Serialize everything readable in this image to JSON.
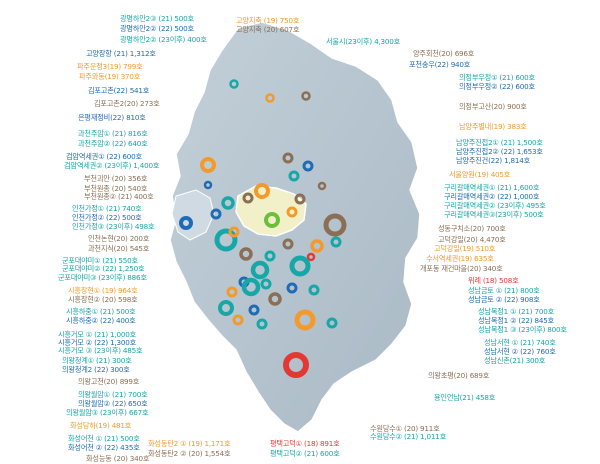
{
  "colors": {
    "teal": "#16a7a7",
    "blue": "#1f6bb5",
    "orange": "#f39a2b",
    "brown": "#8a6f55",
    "green": "#6cbf3b",
    "red": "#e23a32",
    "seoul": "#f2f0c8",
    "land": "#b5c4cf"
  },
  "labels": [
    {
      "text": "광명하안2③ (21) 500호",
      "color": "teal",
      "icon": "blue"
    },
    {
      "text": "광명하안2② (22) 500호",
      "color": "blue",
      "icon": "teal"
    },
    {
      "text": "광명하안2② (23이후) 400호",
      "color": "teal",
      "icon": "teal"
    },
    {
      "text": "고양장항 (21) 1,312호",
      "color": "blue",
      "icon": "blue"
    },
    {
      "text": "파주운정3(19) 799호",
      "color": "orange",
      "icon": "orange"
    },
    {
      "text": "파주와동(19) 370호",
      "color": "orange",
      "icon": "orange"
    },
    {
      "text": "김포고촌(22) 541호",
      "color": "blue",
      "icon": "blue"
    },
    {
      "text": "김포고촌2(20) 273호",
      "color": "brown",
      "icon": "brown"
    },
    {
      "text": "은평재정비(22) 810호",
      "color": "blue",
      "icon": "blue"
    },
    {
      "text": "과천주암① (21) 816호",
      "color": "teal",
      "icon": "teal"
    },
    {
      "text": "과천주암② (22) 640호",
      "color": "teal",
      "icon": "teal"
    },
    {
      "text": "검암역세권① (22) 600호",
      "color": "blue",
      "icon": "blue"
    },
    {
      "text": "검암역세권② (23이후) 1,400호",
      "color": "teal",
      "icon": "teal"
    },
    {
      "text": "부천괴안 (20) 356호",
      "color": "brown",
      "icon": "brown"
    },
    {
      "text": "부천원종 (20) 540호",
      "color": "brown",
      "icon": "brown"
    },
    {
      "text": "부천원종② (21) 400호",
      "color": "brown",
      "icon": "brown"
    },
    {
      "text": "인천가정① (21) 740호",
      "color": "teal",
      "icon": "teal"
    },
    {
      "text": "인천가정② (22) 500호",
      "color": "blue",
      "icon": "blue"
    },
    {
      "text": "인천가정③ (23이후) 498호",
      "color": "teal",
      "icon": "teal"
    },
    {
      "text": "인천논현(20) 200호",
      "color": "brown",
      "icon": "brown"
    },
    {
      "text": "과천지식(20) 545호",
      "color": "brown",
      "icon": "brown"
    },
    {
      "text": "군포대야미① (21) 550호",
      "color": "teal",
      "icon": "teal"
    },
    {
      "text": "군포대야미② (22) 1,250호",
      "color": "teal",
      "icon": "teal"
    },
    {
      "text": "군포대야미③ (23이후) 886호",
      "color": "teal",
      "icon": "teal"
    },
    {
      "text": "시흥장현① (19) 964호",
      "color": "orange",
      "icon": "orange"
    },
    {
      "text": "시흥장현② (20) 598호",
      "color": "brown",
      "icon": "brown"
    },
    {
      "text": "시흥하중① (21) 500호",
      "color": "teal",
      "icon": "teal"
    },
    {
      "text": "시흥하중② (22) 400호",
      "color": "blue",
      "icon": "blue"
    },
    {
      "text": "시흥거모 ① (21) 1,000호",
      "color": "teal",
      "icon": "teal"
    },
    {
      "text": "시흥거모 ② (22) 1,300호",
      "color": "blue",
      "icon": "blue"
    },
    {
      "text": "시흥거모 ③ (23이후) 485호",
      "color": "teal",
      "icon": "teal"
    },
    {
      "text": "의왕청계① (21) 300호",
      "color": "teal",
      "icon": "teal"
    },
    {
      "text": "의왕청계2 (22) 300호",
      "color": "blue",
      "icon": "blue"
    },
    {
      "text": "의왕고천(20) 899호",
      "color": "brown",
      "icon": "brown"
    },
    {
      "text": "의왕월암① (21) 700호",
      "color": "teal",
      "icon": "teal"
    },
    {
      "text": "의왕월암② (22) 650호",
      "color": "blue",
      "icon": "blue"
    },
    {
      "text": "의왕월암③ (23이후) 667호",
      "color": "teal",
      "icon": "teal"
    },
    {
      "text": "화성당하(19) 481호",
      "color": "orange",
      "icon": "orange"
    },
    {
      "text": "화성어천 ① (21) 500호",
      "color": "teal",
      "icon": "teal"
    },
    {
      "text": "화성어천 ② (22) 435호",
      "color": "blue",
      "icon": "blue"
    },
    {
      "text": "화성능동 (20) 340호",
      "color": "brown",
      "icon": "brown"
    },
    {
      "text": "화성동탄2 ① (19) 1,171호",
      "color": "orange",
      "icon": "orange"
    },
    {
      "text": "화성동탄2 ② (20) 1,554호",
      "color": "brown",
      "icon": "brown"
    },
    {
      "text": "평택고덕① (18) 891호",
      "color": "red",
      "icon": "red"
    },
    {
      "text": "평택고덕② (21) 600호",
      "color": "teal",
      "icon": "teal"
    },
    {
      "text": "수원당수① (20) 911호",
      "color": "brown",
      "icon": "brown"
    },
    {
      "text": "수원당수② (21) 1,011호",
      "color": "teal",
      "icon": "teal"
    },
    {
      "text": "용인언남(21) 458호",
      "color": "teal",
      "icon": "teal"
    },
    {
      "text": "의왕초평(20) 689호",
      "color": "brown",
      "icon": "brown"
    },
    {
      "text": "성남신촌(21) 300호",
      "color": "teal",
      "icon": "teal"
    },
    {
      "text": "성남서현 ② (22) 760호",
      "color": "blue",
      "icon": "blue"
    },
    {
      "text": "성남서현 ① (21) 740호",
      "color": "teal",
      "icon": "teal"
    },
    {
      "text": "성남복정1 ③ (23이후) 800호",
      "color": "teal",
      "icon": "teal"
    },
    {
      "text": "성남복정1 ② (22) 845호",
      "color": "blue",
      "icon": "blue"
    },
    {
      "text": "성남복정1 ① (21) 700호",
      "color": "teal",
      "icon": "teal"
    },
    {
      "text": "성남금토 ② (22) 908호",
      "color": "blue",
      "icon": "blue"
    },
    {
      "text": "성남금토 ① (21) 800호",
      "color": "teal",
      "icon": "teal"
    },
    {
      "text": "위례 (18) 508호",
      "color": "red",
      "icon": "red"
    },
    {
      "text": "개포동 재건마을(20) 340호",
      "color": "brown",
      "icon": "brown"
    },
    {
      "text": "수서역세권(19) 635호",
      "color": "orange",
      "icon": "orange"
    },
    {
      "text": "고덕강일(19) 510호",
      "color": "orange",
      "icon": "orange"
    },
    {
      "text": "고덕강일(20) 4,470호",
      "color": "brown",
      "icon": "brown"
    },
    {
      "text": "성동구치소(20) 700호",
      "color": "brown",
      "icon": "brown"
    },
    {
      "text": "구리갈매역세권③(23이후) 500호",
      "color": "teal",
      "icon": "teal"
    },
    {
      "text": "구리갈매역세권② (23이후) 495호",
      "color": "teal",
      "icon": "teal"
    },
    {
      "text": "구리갈매역세권② (22) 1,000호",
      "color": "blue",
      "icon": "blue"
    },
    {
      "text": "구리갈매역세권① (21) 1,600호",
      "color": "teal",
      "icon": "teal"
    },
    {
      "text": "서울양원(19) 405호",
      "color": "orange",
      "icon": "orange"
    },
    {
      "text": "남양주진건(22) 1,814호",
      "color": "blue",
      "icon": "blue"
    },
    {
      "text": "남양주진접2② (22) 1,653호",
      "color": "blue",
      "icon": "blue"
    },
    {
      "text": "남양주진접2① (21) 1,500호",
      "color": "teal",
      "icon": "teal"
    },
    {
      "text": "남양주별내(19) 383호",
      "color": "orange",
      "icon": "orange"
    },
    {
      "text": "의정부고산(20) 900호",
      "color": "brown",
      "icon": "brown"
    },
    {
      "text": "의정부우정② (22) 600호",
      "color": "blue",
      "icon": "blue"
    },
    {
      "text": "의정부우정① (21) 600호",
      "color": "teal",
      "icon": "teal"
    },
    {
      "text": "포천송우(22) 940호",
      "color": "blue",
      "icon": "blue"
    },
    {
      "text": "양주회천(20) 696호",
      "color": "brown",
      "icon": "brown"
    },
    {
      "text": "서울시(23이후) 4,300호",
      "color": "teal",
      "icon": "teal"
    },
    {
      "text": "고양지축 (19) 750호",
      "color": "orange",
      "icon": "orange"
    },
    {
      "text": "고양지축 (20) 607호",
      "color": "brown",
      "icon": "brown"
    }
  ]
}
